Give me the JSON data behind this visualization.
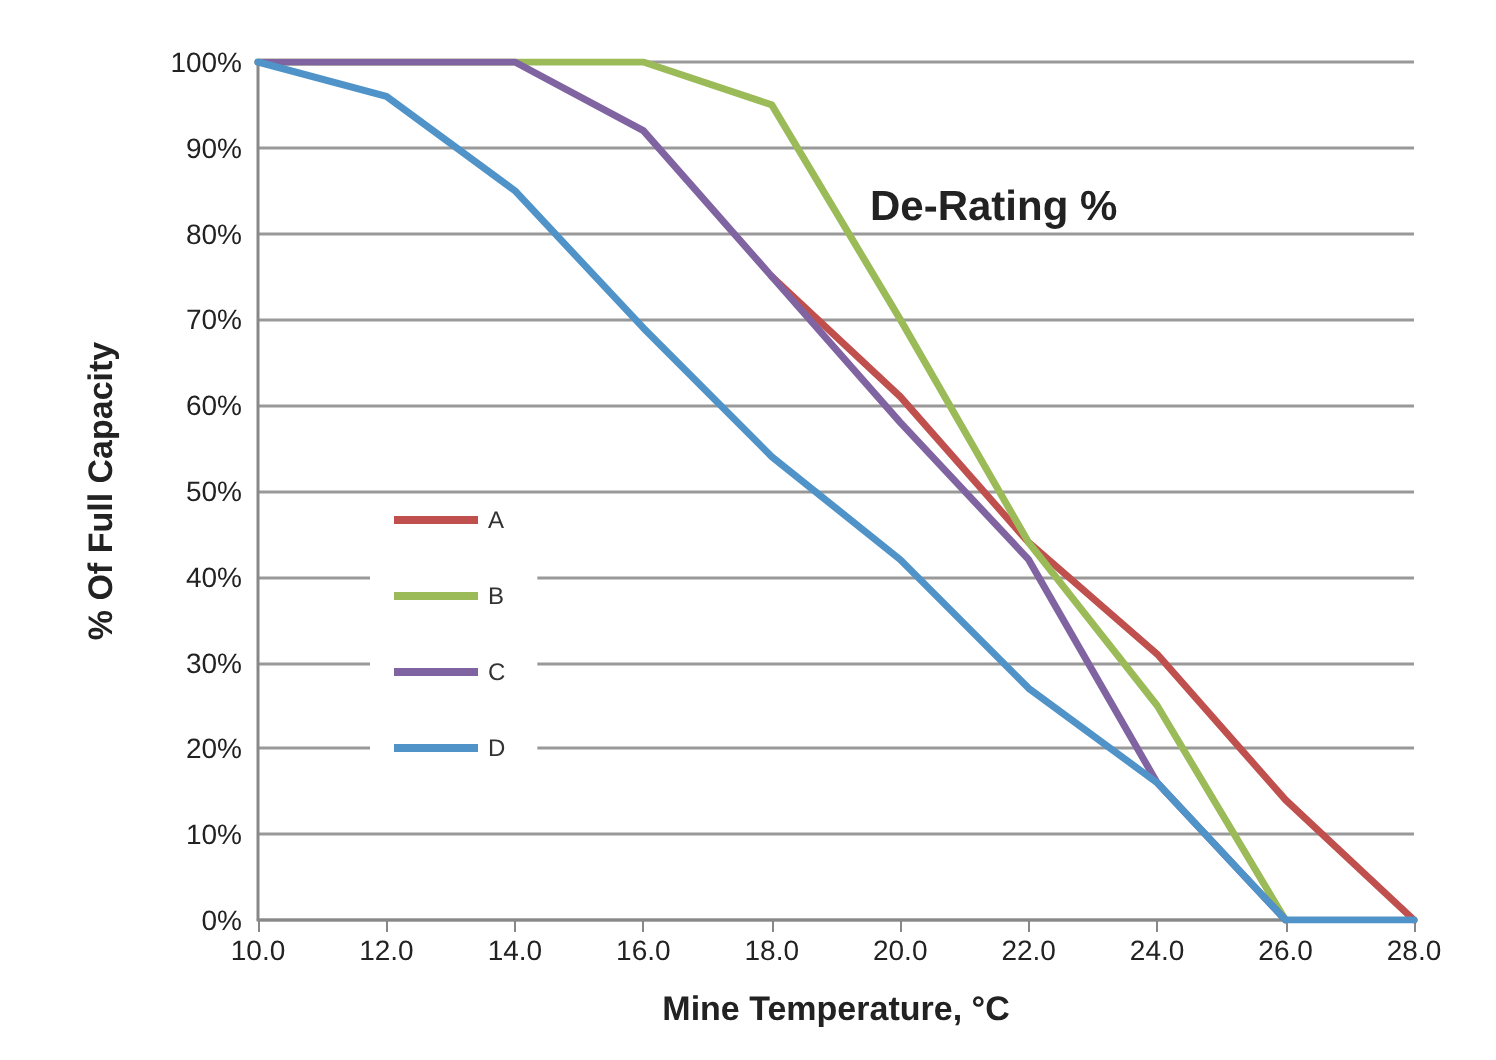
{
  "chart_data": {
    "type": "line",
    "title": "De-Rating %",
    "xlabel": "Mine Temperature, °C",
    "ylabel": "% Of Full Capacity",
    "x": [
      10,
      12,
      14,
      16,
      18,
      20,
      22,
      24,
      26,
      28
    ],
    "series": [
      {
        "name": "A",
        "color": "#c0504d",
        "values": [
          null,
          null,
          null,
          null,
          75,
          61,
          44,
          31,
          14,
          0
        ]
      },
      {
        "name": "B",
        "color": "#9bbb59",
        "values": [
          100,
          100,
          100,
          100,
          95,
          70,
          44,
          25,
          0,
          null
        ]
      },
      {
        "name": "C",
        "color": "#8064a2",
        "values": [
          100,
          100,
          100,
          92,
          75,
          58,
          42,
          16,
          0,
          null
        ]
      },
      {
        "name": "D",
        "color": "#4f93c8",
        "values": [
          100,
          96,
          85,
          69,
          54,
          42,
          27,
          16,
          0,
          0
        ]
      }
    ],
    "xlim": [
      10,
      28
    ],
    "xticks": [
      {
        "value": 10,
        "label": "10.0"
      },
      {
        "value": 12,
        "label": "12.0"
      },
      {
        "value": 14,
        "label": "14.0"
      },
      {
        "value": 16,
        "label": "16.0"
      },
      {
        "value": 18,
        "label": "18.0"
      },
      {
        "value": 20,
        "label": "20.0"
      },
      {
        "value": 22,
        "label": "22.0"
      },
      {
        "value": 24,
        "label": "24.0"
      },
      {
        "value": 26,
        "label": "26.0"
      },
      {
        "value": 28,
        "label": "28.0"
      }
    ],
    "ylim": [
      0,
      100
    ],
    "yticks": [
      {
        "value": 0,
        "label": "0%"
      },
      {
        "value": 10,
        "label": "10%"
      },
      {
        "value": 20,
        "label": "20%"
      },
      {
        "value": 30,
        "label": "30%"
      },
      {
        "value": 40,
        "label": "40%"
      },
      {
        "value": 50,
        "label": "50%"
      },
      {
        "value": 60,
        "label": "60%"
      },
      {
        "value": 70,
        "label": "70%"
      },
      {
        "value": 80,
        "label": "80%"
      },
      {
        "value": 90,
        "label": "90%"
      },
      {
        "value": 100,
        "label": "100%"
      }
    ],
    "grid": "y",
    "legend": "left",
    "marker": "none",
    "line_style": "solid"
  }
}
